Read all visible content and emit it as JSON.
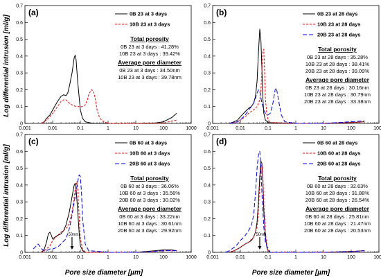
{
  "figure": {
    "ylabel": "Log differential intrusion [ml/g]",
    "xlabel": "Pore size diameter [µm]"
  },
  "chart_data": [
    {
      "type": "line",
      "panel_label": "(a)",
      "x_scale": "log",
      "xlim": [
        0.001,
        1000
      ],
      "ylim": [
        0,
        0.7
      ],
      "x_ticks": [
        "0.001",
        "0.01",
        "0.1",
        "1",
        "10",
        "100",
        "1000"
      ],
      "y_ticks": [
        "0",
        "0.1",
        "0.2",
        "0.3",
        "0.4",
        "0.5",
        "0.6",
        "0.7"
      ],
      "legend_position": "top-right",
      "series": [
        {
          "name": "0B 23 at 3 days",
          "color": "#000000",
          "dash": "solid",
          "x": [
            0.004,
            0.005,
            0.006,
            0.008,
            0.01,
            0.015,
            0.02,
            0.025,
            0.03,
            0.035,
            0.04,
            0.05,
            0.06,
            0.065,
            0.07,
            0.08,
            0.1,
            0.12,
            0.15,
            0.2,
            0.3,
            1,
            10,
            50,
            100,
            200,
            300
          ],
          "y": [
            0,
            0.01,
            0.03,
            0.05,
            0.08,
            0.13,
            0.16,
            0.17,
            0.165,
            0.18,
            0.22,
            0.3,
            0.39,
            0.405,
            0.38,
            0.25,
            0.08,
            0.03,
            0.01,
            0.005,
            0,
            0,
            0,
            0.002,
            0.01,
            0.035,
            0.06
          ]
        },
        {
          "name": "10B 23 at 3 days",
          "color": "#ff0000",
          "dash": "dashed",
          "x": [
            0.004,
            0.006,
            0.008,
            0.01,
            0.015,
            0.02,
            0.025,
            0.03,
            0.04,
            0.05,
            0.07,
            0.1,
            0.12,
            0.15,
            0.18,
            0.2,
            0.25,
            0.3,
            0.35,
            0.4,
            0.5,
            0.7,
            1,
            10,
            100,
            300
          ],
          "y": [
            0,
            0.02,
            0.04,
            0.06,
            0.1,
            0.13,
            0.14,
            0.14,
            0.12,
            0.11,
            0.1,
            0.1,
            0.1,
            0.11,
            0.14,
            0.17,
            0.2,
            0.19,
            0.14,
            0.08,
            0.03,
            0.01,
            0,
            0,
            0.002,
            0.02
          ]
        }
      ],
      "annotations": {
        "total_porosity_title": "Total porosity",
        "total_porosity": [
          "0B 23 at 3 days : 41.28%",
          "10B 23 at 3 days : 39.42%"
        ],
        "pore_diameter_title": "Average pore diameter",
        "pore_diameter": [
          "0B 23 at 3 days : 34.50nm",
          "10B 23 at 3 days : 39.78nm"
        ]
      }
    },
    {
      "type": "line",
      "panel_label": "(b)",
      "x_scale": "log",
      "xlim": [
        0.001,
        1000
      ],
      "ylim": [
        0,
        0.7
      ],
      "x_ticks": [
        "0.001",
        "0.01",
        "0.1",
        "1",
        "10",
        "100",
        "1000"
      ],
      "y_ticks": [
        "0",
        "0.1",
        "0.2",
        "0.3",
        "0.4",
        "0.5",
        "0.6",
        "0.7"
      ],
      "legend_position": "top-right",
      "series": [
        {
          "name": "0B 23 at 28 days",
          "color": "#000000",
          "dash": "solid",
          "x": [
            0.004,
            0.006,
            0.008,
            0.01,
            0.015,
            0.02,
            0.025,
            0.03,
            0.035,
            0.04,
            0.045,
            0.05,
            0.055,
            0.06,
            0.065,
            0.07,
            0.08,
            0.1,
            1,
            10,
            100,
            300
          ],
          "y": [
            0,
            0.01,
            0.02,
            0.04,
            0.07,
            0.09,
            0.1,
            0.12,
            0.16,
            0.25,
            0.42,
            0.56,
            0.5,
            0.32,
            0.15,
            0.06,
            0.02,
            0.005,
            0,
            0,
            0.005,
            0.01
          ]
        },
        {
          "name": "10B 23 at 28 days",
          "color": "#ff0000",
          "dash": "dashed",
          "x": [
            0.004,
            0.008,
            0.01,
            0.015,
            0.02,
            0.03,
            0.04,
            0.05,
            0.055,
            0.06,
            0.065,
            0.07,
            0.075,
            0.08,
            0.09,
            0.1,
            0.12,
            1,
            10,
            100,
            300
          ],
          "y": [
            0,
            0.01,
            0.02,
            0.04,
            0.06,
            0.08,
            0.1,
            0.14,
            0.2,
            0.32,
            0.43,
            0.44,
            0.3,
            0.15,
            0.05,
            0.02,
            0.005,
            0,
            0,
            0.005,
            0.01
          ]
        },
        {
          "name": "20B 23 at 28 days",
          "color": "#0000ff",
          "dash": "longdash",
          "x": [
            0.004,
            0.008,
            0.01,
            0.015,
            0.02,
            0.025,
            0.03,
            0.035,
            0.04,
            0.045,
            0.05,
            0.06,
            0.07,
            0.08,
            0.1,
            0.12,
            0.15,
            0.18,
            0.2,
            0.25,
            0.3,
            0.4,
            1,
            10,
            100,
            300
          ],
          "y": [
            0,
            0.01,
            0.02,
            0.05,
            0.08,
            0.1,
            0.12,
            0.15,
            0.18,
            0.2,
            0.19,
            0.12,
            0.08,
            0.06,
            0.05,
            0.06,
            0.12,
            0.2,
            0.21,
            0.12,
            0.05,
            0.01,
            0,
            0,
            0.01,
            0.015
          ]
        }
      ],
      "annotations": {
        "total_porosity_title": "Total porosity",
        "total_porosity": [
          "0B 23 at 28 days : 35.28%",
          "10B 23 at 28 days : 38.41%",
          "20B 23 at 28 days : 39.09%"
        ],
        "pore_diameter_title": "Average pore diameter",
        "pore_diameter": [
          "0B 23 at 28 days : 30.16nm",
          "10B 23 at 28 days : 30.79nm",
          "20B 23 at 28 days : 33.38nm"
        ]
      }
    },
    {
      "type": "line",
      "panel_label": "(c)",
      "x_scale": "log",
      "xlim": [
        0.001,
        1000
      ],
      "ylim": [
        0,
        0.7
      ],
      "x_ticks": [
        "0.001",
        "0.01",
        "0.1",
        "1",
        "10",
        "100",
        "1000"
      ],
      "y_ticks": [
        "0",
        "0.1",
        "0.2",
        "0.3",
        "0.4",
        "0.5",
        "0.6",
        "0.7"
      ],
      "legend_position": "top-right",
      "marker": {
        "x": 0.05,
        "label": "50nm"
      },
      "series": [
        {
          "name": "0B 60 at 3 days",
          "color": "#000000",
          "dash": "solid",
          "x": [
            0.004,
            0.005,
            0.006,
            0.007,
            0.008,
            0.009,
            0.01,
            0.012,
            0.015,
            0.02,
            0.025,
            0.03,
            0.04,
            0.05,
            0.06,
            0.065,
            0.07,
            0.08,
            0.09,
            0.1,
            0.12,
            0.15,
            1,
            10,
            50,
            100,
            200,
            300
          ],
          "y": [
            0,
            0.02,
            0.06,
            0.11,
            0.12,
            0.1,
            0.08,
            0.09,
            0.1,
            0.11,
            0.13,
            0.16,
            0.24,
            0.33,
            0.4,
            0.41,
            0.38,
            0.25,
            0.12,
            0.04,
            0.01,
            0,
            0,
            0,
            0.01,
            0.015,
            0.015,
            0.01
          ]
        },
        {
          "name": "10B 60 at 3 days",
          "color": "#ff0000",
          "dash": "dashed",
          "x": [
            0.004,
            0.006,
            0.008,
            0.01,
            0.015,
            0.02,
            0.025,
            0.03,
            0.04,
            0.05,
            0.06,
            0.07,
            0.075,
            0.08,
            0.09,
            0.1,
            0.12,
            0.15,
            1,
            10,
            100,
            300
          ],
          "y": [
            0,
            0.02,
            0.04,
            0.07,
            0.1,
            0.12,
            0.13,
            0.14,
            0.17,
            0.24,
            0.33,
            0.4,
            0.42,
            0.38,
            0.22,
            0.08,
            0.02,
            0,
            0,
            0,
            0.01,
            0.01
          ]
        },
        {
          "name": "20B 60 at 3 days",
          "color": "#0000ff",
          "dash": "longdash",
          "x": [
            0.002,
            0.003,
            0.004,
            0.005,
            0.006,
            0.008,
            0.01,
            0.015,
            0.02,
            0.03,
            0.04,
            0.05,
            0.06,
            0.07,
            0.08,
            0.09,
            0.1,
            0.11,
            0.12,
            0.15,
            0.2,
            1,
            10,
            100,
            300
          ],
          "y": [
            0.02,
            0.05,
            0.02,
            0.01,
            0.01,
            0.02,
            0.02,
            0.03,
            0.05,
            0.08,
            0.14,
            0.22,
            0.3,
            0.36,
            0.42,
            0.46,
            0.45,
            0.35,
            0.2,
            0.05,
            0.01,
            0,
            0,
            0.01,
            0.01
          ]
        }
      ],
      "annotations": {
        "total_porosity_title": "Total porosity",
        "total_porosity": [
          "0B 60 at 3 days : 36.06%",
          "10B 60 at 3 days : 35.56%",
          "20B 60 at 3 days : 30.02%"
        ],
        "pore_diameter_title": "Average pore diameter",
        "pore_diameter": [
          "0B 60 at 3 days : 33.22nm",
          "10B 60 at 3 days : 30.61nm",
          "20B 60 at 3 days : 29.92nm"
        ]
      }
    },
    {
      "type": "line",
      "panel_label": "(d)",
      "x_scale": "log",
      "xlim": [
        0.001,
        1000
      ],
      "ylim": [
        0,
        0.7
      ],
      "x_ticks": [
        "0.001",
        "0.01",
        "0.1",
        "1",
        "10",
        "100",
        "1000"
      ],
      "y_ticks": [
        "0",
        "0.1",
        "0.2",
        "0.3",
        "0.4",
        "0.5",
        "0.6",
        "0.7"
      ],
      "legend_position": "top-right",
      "marker": {
        "x": 0.05,
        "label": "50nm"
      },
      "series": [
        {
          "name": "0B 60 at 28 days",
          "color": "#000000",
          "dash": "solid",
          "x": [
            0.004,
            0.006,
            0.008,
            0.01,
            0.015,
            0.02,
            0.025,
            0.03,
            0.035,
            0.04,
            0.045,
            0.05,
            0.055,
            0.06,
            0.065,
            0.07,
            0.08,
            0.09,
            0.1,
            0.12,
            1,
            10,
            100,
            300
          ],
          "y": [
            0,
            0.01,
            0.02,
            0.03,
            0.05,
            0.06,
            0.07,
            0.09,
            0.12,
            0.18,
            0.3,
            0.45,
            0.54,
            0.53,
            0.42,
            0.25,
            0.1,
            0.03,
            0.01,
            0,
            0,
            0,
            0.005,
            0.01
          ]
        },
        {
          "name": "10B 60 at 28 days",
          "color": "#ff0000",
          "dash": "dashed",
          "x": [
            0.004,
            0.006,
            0.008,
            0.01,
            0.015,
            0.02,
            0.03,
            0.04,
            0.045,
            0.05,
            0.055,
            0.06,
            0.065,
            0.07,
            0.08,
            0.09,
            0.1,
            0.12,
            1,
            10,
            100,
            300
          ],
          "y": [
            0,
            0.01,
            0.02,
            0.03,
            0.05,
            0.06,
            0.09,
            0.15,
            0.25,
            0.4,
            0.5,
            0.52,
            0.45,
            0.3,
            0.12,
            0.04,
            0.01,
            0,
            0,
            0,
            0.005,
            0.01
          ]
        },
        {
          "name": "20B 60 at 28 days",
          "color": "#0000ff",
          "dash": "longdash",
          "x": [
            0.003,
            0.004,
            0.006,
            0.008,
            0.01,
            0.015,
            0.02,
            0.025,
            0.03,
            0.035,
            0.04,
            0.045,
            0.05,
            0.055,
            0.06,
            0.07,
            0.08,
            0.1,
            0.12,
            1,
            10,
            100,
            300
          ],
          "y": [
            0,
            0.01,
            0.03,
            0.05,
            0.07,
            0.1,
            0.13,
            0.16,
            0.22,
            0.35,
            0.5,
            0.58,
            0.6,
            0.52,
            0.35,
            0.15,
            0.06,
            0.02,
            0,
            0,
            0,
            0.005,
            0.01
          ]
        }
      ],
      "annotations": {
        "total_porosity_title": "Total porosity",
        "total_porosity": [
          "0B 60 at 28 days : 32.63%",
          "10B 60 at 28 days : 31.88%",
          "20B 60 at 28 days : 26.54%"
        ],
        "pore_diameter_title": "Average pore diameter",
        "pore_diameter": [
          "0B 60 at 28 days : 25.81nm",
          "10B 60 at 28 days : 21.47nm",
          "20B 60 at 28 days : 20.53nm"
        ]
      }
    }
  ]
}
